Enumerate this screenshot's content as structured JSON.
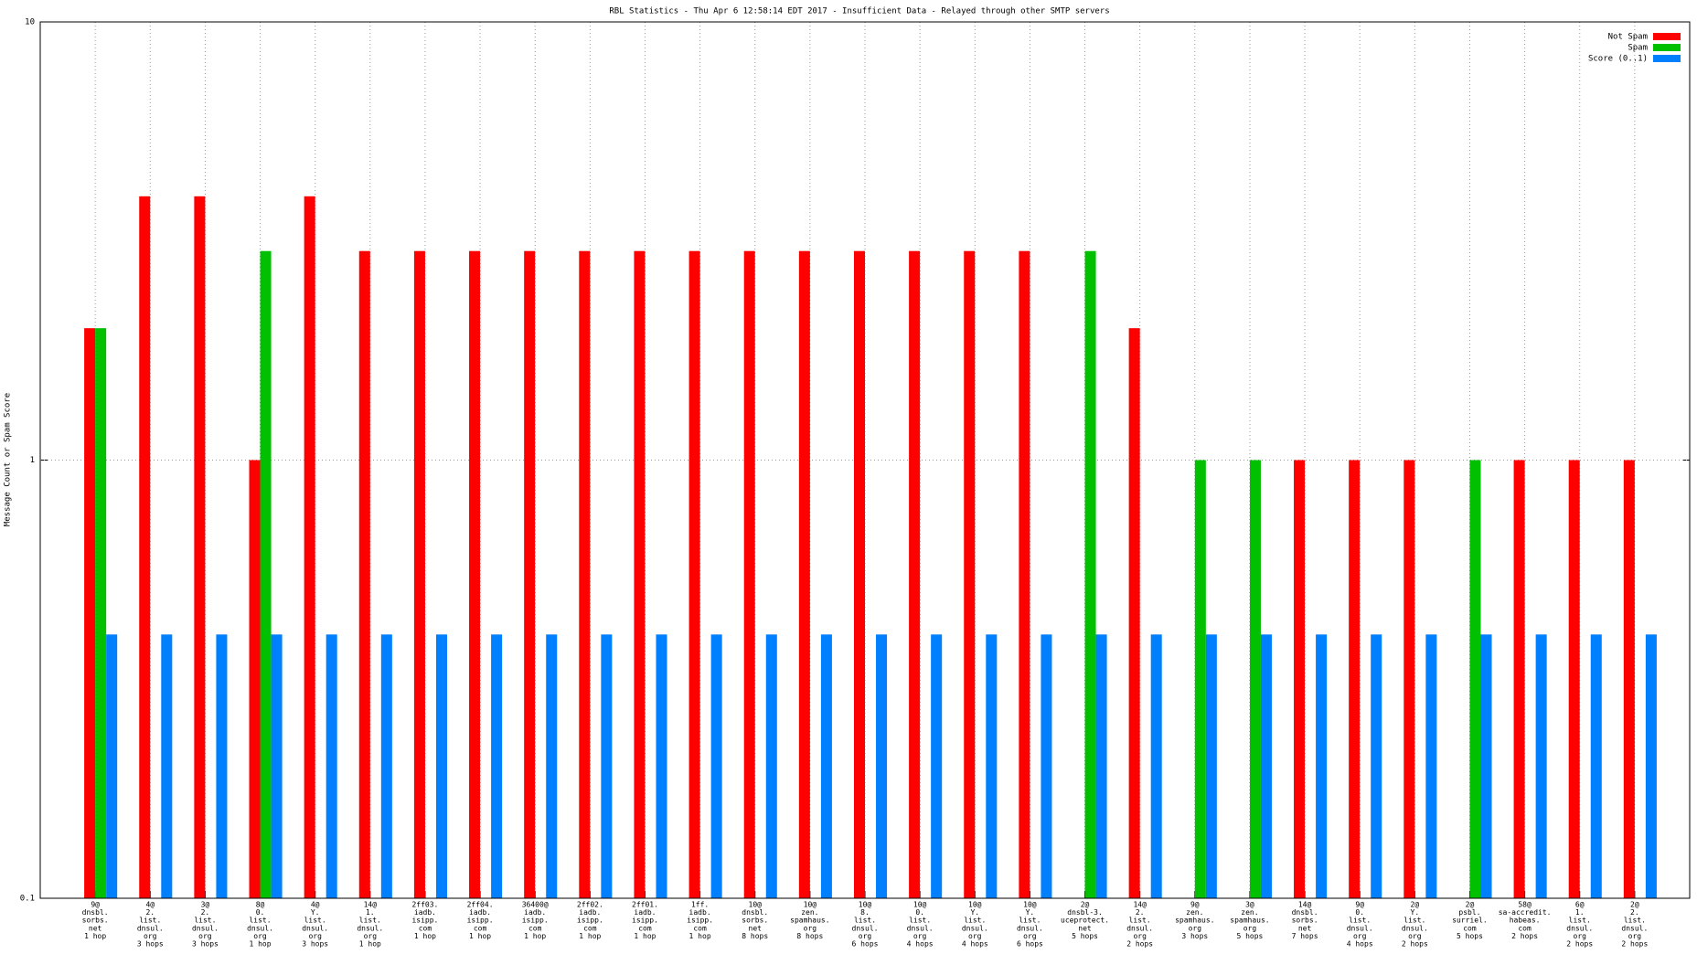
{
  "chart_data": {
    "type": "bar",
    "title": "RBL Statistics - Thu Apr  6 12:58:14 EDT 2017 - Insufficient Data - Relayed through other SMTP servers",
    "y_label": "Message Count or Spam Score",
    "log_scale": true,
    "grid": true,
    "legend_position": "top-right",
    "ylim": [
      0.1,
      10
    ],
    "yticks": [
      0.1,
      1,
      10
    ],
    "categories": [
      [
        "9@",
        "dnsbl.",
        "sorbs.",
        "net",
        "1 hop"
      ],
      [
        "4@",
        "2.",
        "list.",
        "dnsul.",
        "org",
        "3 hops"
      ],
      [
        "3@",
        "2.",
        "list.",
        "dnsul.",
        "org",
        "3 hops"
      ],
      [
        "8@",
        "0.",
        "list.",
        "dnsul.",
        "org",
        "1 hop"
      ],
      [
        "4@",
        "Y.",
        "list.",
        "dnsul.",
        "org",
        "3 hops"
      ],
      [
        "14@",
        "1.",
        "list.",
        "dnsul.",
        "org",
        "1 hop"
      ],
      [
        "2ff03.",
        "iadb.",
        "isipp.",
        "com",
        "1 hop"
      ],
      [
        "2ff04.",
        "iadb.",
        "isipp.",
        "com",
        "1 hop"
      ],
      [
        "36400@",
        "iadb.",
        "isipp.",
        "com",
        "1 hop"
      ],
      [
        "2ff02.",
        "iadb.",
        "isipp.",
        "com",
        "1 hop"
      ],
      [
        "2ff01.",
        "iadb.",
        "isipp.",
        "com",
        "1 hop"
      ],
      [
        "1ff.",
        "iadb.",
        "isipp.",
        "com",
        "1 hop"
      ],
      [
        "10@",
        "dnsbl.",
        "sorbs.",
        "net",
        "8 hops"
      ],
      [
        "10@",
        "zen.",
        "spamhaus.",
        "org",
        "8 hops"
      ],
      [
        "10@",
        "8.",
        "list.",
        "dnsul.",
        "org",
        "6 hops"
      ],
      [
        "10@",
        "0.",
        "list.",
        "dnsul.",
        "org",
        "4 hops"
      ],
      [
        "10@",
        "Y.",
        "list.",
        "dnsul.",
        "org",
        "4 hops"
      ],
      [
        "10@",
        "Y.",
        "list.",
        "dnsul.",
        "org",
        "6 hops"
      ],
      [
        "2@",
        "dnsbl-3.",
        "uceprotect.",
        "net",
        "5 hops"
      ],
      [
        "14@",
        "2.",
        "list.",
        "dnsul.",
        "org",
        "2 hops"
      ],
      [
        "9@",
        "zen.",
        "spamhaus.",
        "org",
        "3 hops"
      ],
      [
        "3@",
        "zen.",
        "spamhaus.",
        "org",
        "5 hops"
      ],
      [
        "14@",
        "dnsbl.",
        "sorbs.",
        "net",
        "7 hops"
      ],
      [
        "9@",
        "0.",
        "list.",
        "dnsul.",
        "org",
        "4 hops"
      ],
      [
        "2@",
        "Y.",
        "list.",
        "dnsul.",
        "org",
        "2 hops"
      ],
      [
        "2@",
        "psbl.",
        "surriel.",
        "com",
        "5 hops"
      ],
      [
        "58@",
        "sa-accredit.",
        "habeas.",
        "com",
        "2 hops"
      ],
      [
        "6@",
        "1.",
        "list.",
        "dnsul.",
        "org",
        "2 hops"
      ],
      [
        "2@",
        "2.",
        "list.",
        "dnsul.",
        "org",
        "2 hops"
      ]
    ],
    "series": [
      {
        "name": "Not Spam",
        "color": "#ff0000",
        "values": [
          2,
          4,
          4,
          1,
          4,
          3,
          3,
          3,
          3,
          3,
          3,
          3,
          3,
          3,
          3,
          3,
          3,
          3,
          null,
          2,
          null,
          null,
          1,
          1,
          1,
          null,
          1,
          1,
          1
        ]
      },
      {
        "name": "Spam",
        "color": "#00c000",
        "values": [
          2,
          null,
          null,
          3,
          null,
          null,
          null,
          null,
          null,
          null,
          null,
          null,
          null,
          null,
          null,
          null,
          null,
          null,
          3,
          null,
          1,
          1,
          null,
          null,
          null,
          1,
          null,
          null,
          null
        ]
      },
      {
        "name": "Score (0..1)",
        "color": "#0080ff",
        "values": [
          0.4,
          0.4,
          0.4,
          0.4,
          0.4,
          0.4,
          0.4,
          0.4,
          0.4,
          0.4,
          0.4,
          0.4,
          0.4,
          0.4,
          0.4,
          0.4,
          0.4,
          0.4,
          0.4,
          0.4,
          0.4,
          0.4,
          0.4,
          0.4,
          0.4,
          0.4,
          0.4,
          0.4,
          0.4
        ]
      }
    ]
  }
}
